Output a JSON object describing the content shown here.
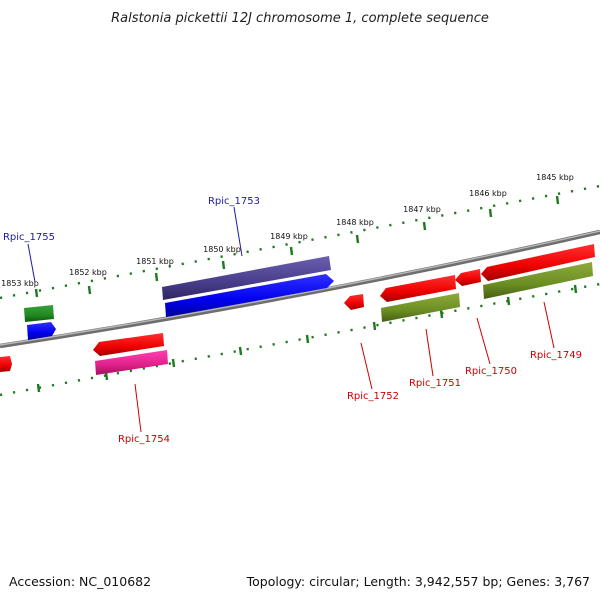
{
  "title": "Ralstonia pickettii 12J chromosome 1, complete sequence",
  "footer": {
    "accession": "Accession: NC_010682",
    "summary": "Topology: circular; Length: 3,942,557 bp; Genes: 3,767"
  },
  "colors": {
    "backbone": "#8a8a8a",
    "tick": "#1f7a1f",
    "label_blue": "#1a1aa6",
    "label_red": "#cc0000"
  },
  "scale_markers": [
    "1853 kbp",
    "1852 kbp",
    "1851 kbp",
    "1850 kbp",
    "1849 kbp",
    "1848 kbp",
    "1847 kbp",
    "1846 kbp",
    "1845 kbp"
  ],
  "genes": [
    {
      "name": "Rpic_1755",
      "label_color": "#1a1aa6"
    },
    {
      "name": "Rpic_1754",
      "label_color": "#cc0000"
    },
    {
      "name": "Rpic_1753",
      "label_color": "#1a1aa6"
    },
    {
      "name": "Rpic_1752",
      "label_color": "#cc0000"
    },
    {
      "name": "Rpic_1751",
      "label_color": "#cc0000"
    },
    {
      "name": "Rpic_1750",
      "label_color": "#cc0000"
    },
    {
      "name": "Rpic_1749",
      "label_color": "#cc0000"
    }
  ]
}
